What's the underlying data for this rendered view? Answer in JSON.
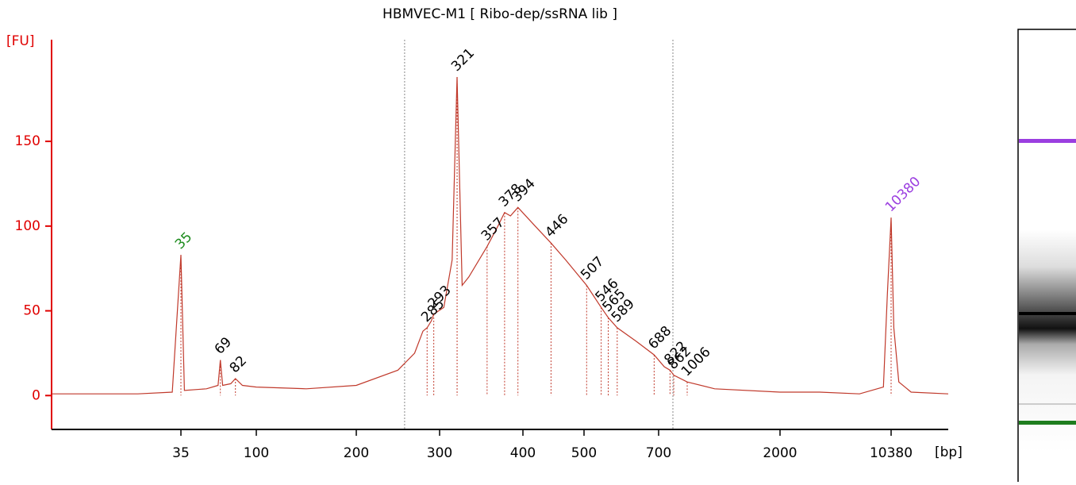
{
  "chart_data": {
    "type": "line",
    "title": "HBMVEC-M1  [ Ribo-dep/ssRNA lib ]",
    "ylabel": "[FU]",
    "xlabel": "[bp]",
    "ylim": [
      -20,
      210
    ],
    "yticks": [
      0,
      50,
      100,
      150
    ],
    "xlim": [
      20,
      15000
    ],
    "xticks": [
      35,
      100,
      200,
      300,
      400,
      500,
      700,
      2000,
      10380
    ],
    "series": [
      {
        "color": "#c0392b",
        "x": [
          20,
          30,
          34,
          35,
          38,
          57,
          67,
          69,
          71,
          78,
          82,
          88,
          100,
          150,
          200,
          250,
          270,
          280,
          285,
          290,
          293,
          305,
          315,
          321,
          327,
          335,
          357,
          370,
          378,
          385,
          394,
          420,
          446,
          470,
          507,
          546,
          565,
          589,
          640,
          688,
          760,
          822,
          862,
          1006,
          1300,
          2000,
          5000,
          8000,
          9800,
          10100,
          10380,
          10600,
          11000,
          12000,
          15000
        ],
        "values": [
          1,
          1,
          2,
          83,
          3,
          4,
          6,
          21,
          6,
          7,
          10,
          6,
          5,
          4,
          6,
          15,
          25,
          38,
          40,
          44,
          48,
          52,
          80,
          188,
          65,
          70,
          88,
          100,
          108,
          106,
          111,
          100,
          90,
          80,
          65,
          52,
          46,
          40,
          32,
          24,
          17,
          15,
          12,
          8,
          4,
          2,
          2,
          1,
          5,
          60,
          105,
          40,
          8,
          2,
          1
        ]
      }
    ],
    "peaks": [
      35,
      69,
      82,
      285,
      293,
      321,
      357,
      378,
      394,
      446,
      507,
      546,
      565,
      589,
      688,
      822,
      862,
      1006,
      10380
    ],
    "peak_colors": [
      "#1e8c1e",
      "#000",
      "#000",
      "#000",
      "#000",
      "#000",
      "#000",
      "#000",
      "#000",
      "#000",
      "#000",
      "#000",
      "#000",
      "#000",
      "#000",
      "#000",
      "#000",
      "#000",
      "#9b3ee0"
    ],
    "region": [
      258,
      853
    ],
    "axis_color": "#e00000"
  }
}
